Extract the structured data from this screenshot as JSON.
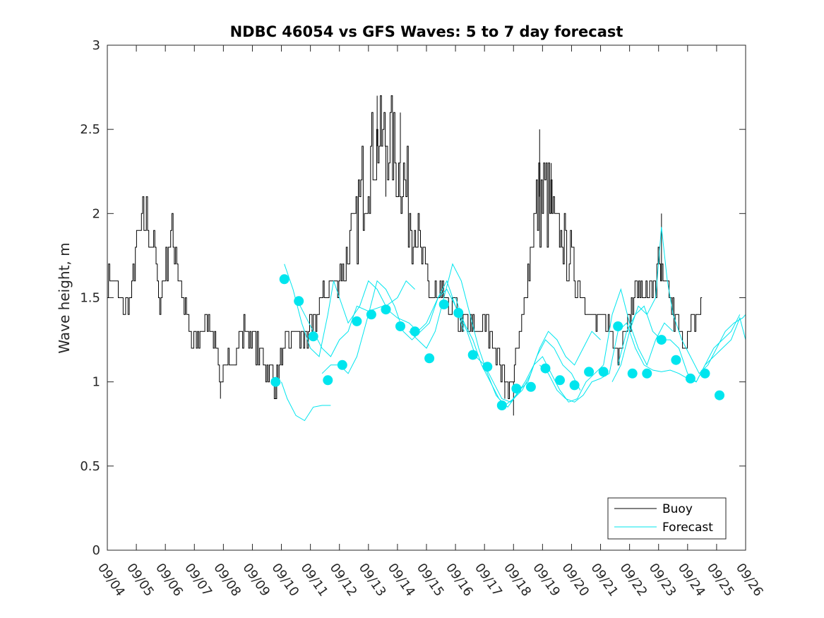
{
  "chart_data": {
    "type": "line",
    "title": "NDBC 46054 vs GFS Waves: 5 to 7 day forecast",
    "xlabel": "",
    "ylabel": "Wave height, m",
    "xlim_days": [
      0,
      22
    ],
    "ylim": [
      0,
      3
    ],
    "yticks": [
      0,
      0.5,
      1,
      1.5,
      2,
      2.5,
      3
    ],
    "ytick_labels": [
      "0",
      "0.5",
      "1",
      "1.5",
      "2",
      "2.5",
      "3"
    ],
    "xtick_labels": [
      "09/04",
      "09/05",
      "09/06",
      "09/07",
      "09/08",
      "09/09",
      "09/10",
      "09/11",
      "09/12",
      "09/13",
      "09/14",
      "09/15",
      "09/16",
      "09/17",
      "09/18",
      "09/19",
      "09/20",
      "09/21",
      "09/22",
      "09/23",
      "09/24",
      "09/25",
      "09/26"
    ],
    "legend": {
      "position": "bottom-right",
      "entries": [
        {
          "label": "Buoy",
          "color": "#000000"
        },
        {
          "label": "Forecast",
          "color": "#00e5ee"
        }
      ]
    },
    "colors": {
      "buoy": "#000000",
      "forecast": "#00e5ee",
      "axis": "#262626"
    },
    "buoy_anchors": [
      [
        0.0,
        1.6
      ],
      [
        0.3,
        1.6
      ],
      [
        0.5,
        1.45
      ],
      [
        0.8,
        1.5
      ],
      [
        1.0,
        1.8
      ],
      [
        1.3,
        2.0
      ],
      [
        1.6,
        1.8
      ],
      [
        1.8,
        1.45
      ],
      [
        2.1,
        1.8
      ],
      [
        2.3,
        1.85
      ],
      [
        2.5,
        1.6
      ],
      [
        2.7,
        1.4
      ],
      [
        2.9,
        1.2
      ],
      [
        3.2,
        1.3
      ],
      [
        3.5,
        1.4
      ],
      [
        3.8,
        1.15
      ],
      [
        3.9,
        1.0
      ],
      [
        4.3,
        1.15
      ],
      [
        4.7,
        1.3
      ],
      [
        5.0,
        1.25
      ],
      [
        5.3,
        1.15
      ],
      [
        5.5,
        1.05
      ],
      [
        5.8,
        1.0
      ],
      [
        6.1,
        1.2
      ],
      [
        6.4,
        1.3
      ],
      [
        6.7,
        1.25
      ],
      [
        7.0,
        1.3
      ],
      [
        7.3,
        1.45
      ],
      [
        7.6,
        1.55
      ],
      [
        7.9,
        1.6
      ],
      [
        8.2,
        1.7
      ],
      [
        8.6,
        2.0
      ],
      [
        9.0,
        2.3
      ],
      [
        9.4,
        2.45
      ],
      [
        9.8,
        2.4
      ],
      [
        10.2,
        2.2
      ],
      [
        10.5,
        2.0
      ],
      [
        10.8,
        1.75
      ],
      [
        11.1,
        1.55
      ],
      [
        11.5,
        1.5
      ],
      [
        11.9,
        1.45
      ],
      [
        12.2,
        1.35
      ],
      [
        12.6,
        1.3
      ],
      [
        13.0,
        1.35
      ],
      [
        13.3,
        1.25
      ],
      [
        13.6,
        1.05
      ],
      [
        13.9,
        0.95
      ],
      [
        14.3,
        1.35
      ],
      [
        14.5,
        1.7
      ],
      [
        14.8,
        2.05
      ],
      [
        15.1,
        2.1
      ],
      [
        15.4,
        1.95
      ],
      [
        15.7,
        1.85
      ],
      [
        16.1,
        1.65
      ],
      [
        16.4,
        1.5
      ],
      [
        16.8,
        1.35
      ],
      [
        17.2,
        1.35
      ],
      [
        17.6,
        1.2
      ],
      [
        17.9,
        1.35
      ],
      [
        18.3,
        1.55
      ],
      [
        18.7,
        1.5
      ],
      [
        19.0,
        1.65
      ],
      [
        19.3,
        1.55
      ],
      [
        19.6,
        1.35
      ],
      [
        19.9,
        1.2
      ],
      [
        20.2,
        1.35
      ],
      [
        20.5,
        1.45
      ]
    ],
    "buoy_spikes": [
      [
        9.3,
        2.7
      ],
      [
        9.6,
        2.1
      ],
      [
        10.1,
        2.6
      ],
      [
        14.9,
        2.5
      ],
      [
        15.3,
        2.3
      ],
      [
        19.1,
        2.0
      ],
      [
        14.0,
        0.8
      ],
      [
        3.9,
        0.9
      ],
      [
        5.8,
        0.9
      ],
      [
        13.7,
        0.9
      ]
    ],
    "forecast_markers": [
      [
        5.8,
        1.0
      ],
      [
        6.1,
        1.61
      ],
      [
        6.6,
        1.48
      ],
      [
        7.1,
        1.27
      ],
      [
        7.6,
        1.01
      ],
      [
        8.1,
        1.1
      ],
      [
        8.6,
        1.36
      ],
      [
        9.1,
        1.4
      ],
      [
        9.6,
        1.43
      ],
      [
        10.1,
        1.33
      ],
      [
        10.6,
        1.3
      ],
      [
        11.1,
        1.14
      ],
      [
        11.6,
        1.46
      ],
      [
        12.1,
        1.41
      ],
      [
        12.6,
        1.16
      ],
      [
        13.1,
        1.09
      ],
      [
        13.6,
        0.86
      ],
      [
        14.1,
        0.96
      ],
      [
        14.6,
        0.97
      ],
      [
        15.1,
        1.08
      ],
      [
        15.6,
        1.01
      ],
      [
        16.1,
        0.98
      ],
      [
        16.6,
        1.06
      ],
      [
        17.1,
        1.06
      ],
      [
        17.6,
        1.33
      ],
      [
        18.1,
        1.05
      ],
      [
        18.6,
        1.05
      ],
      [
        19.1,
        1.25
      ],
      [
        19.6,
        1.13
      ],
      [
        20.1,
        1.02
      ],
      [
        20.6,
        1.05
      ],
      [
        21.1,
        0.92
      ]
    ],
    "forecast_segments": [
      [
        [
          6.1,
          1.7
        ],
        [
          6.4,
          1.55
        ],
        [
          6.7,
          1.35
        ],
        [
          7.0,
          1.2
        ],
        [
          7.3,
          1.15
        ],
        [
          7.6,
          1.4
        ],
        [
          7.8,
          1.6
        ],
        [
          8.0,
          1.5
        ],
        [
          8.3,
          1.35
        ],
        [
          8.7,
          1.45
        ],
        [
          9.0,
          1.6
        ],
        [
          9.3,
          1.55
        ],
        [
          9.6,
          1.45
        ],
        [
          10.0,
          1.5
        ],
        [
          10.3,
          1.6
        ],
        [
          10.6,
          1.55
        ]
      ],
      [
        [
          6.0,
          1.0
        ],
        [
          6.2,
          0.9
        ],
        [
          6.5,
          0.8
        ],
        [
          6.8,
          0.77
        ],
        [
          7.1,
          0.85
        ],
        [
          7.4,
          0.86
        ],
        [
          7.7,
          0.86
        ]
      ],
      [
        [
          6.5,
          1.5
        ],
        [
          6.8,
          1.4
        ],
        [
          7.1,
          1.3
        ],
        [
          7.4,
          1.2
        ],
        [
          7.7,
          1.15
        ],
        [
          8.0,
          1.25
        ],
        [
          8.3,
          1.3
        ],
        [
          8.6,
          1.45
        ],
        [
          9.0,
          1.42
        ],
        [
          9.5,
          1.45
        ],
        [
          10.0,
          1.38
        ],
        [
          10.4,
          1.35
        ],
        [
          10.7,
          1.3
        ],
        [
          11.0,
          1.35
        ],
        [
          11.4,
          1.5
        ],
        [
          11.7,
          1.6
        ],
        [
          12.0,
          1.45
        ],
        [
          12.3,
          1.3
        ]
      ],
      [
        [
          7.4,
          1.05
        ],
        [
          7.7,
          1.1
        ],
        [
          8.0,
          1.1
        ],
        [
          8.3,
          1.05
        ],
        [
          8.6,
          1.15
        ],
        [
          9.0,
          1.4
        ],
        [
          9.3,
          1.6
        ],
        [
          9.6,
          1.55
        ],
        [
          9.9,
          1.45
        ],
        [
          10.2,
          1.3
        ],
        [
          10.5,
          1.25
        ],
        [
          10.8,
          1.3
        ],
        [
          11.1,
          1.35
        ],
        [
          11.4,
          1.5
        ],
        [
          11.7,
          1.55
        ],
        [
          12.0,
          1.45
        ],
        [
          12.4,
          1.3
        ],
        [
          12.7,
          1.15
        ],
        [
          13.0,
          1.1
        ],
        [
          13.3,
          1.0
        ],
        [
          13.6,
          0.9
        ],
        [
          13.9,
          0.88
        ],
        [
          14.2,
          0.95
        ],
        [
          14.5,
          1.0
        ],
        [
          14.8,
          1.15
        ],
        [
          15.1,
          1.25
        ],
        [
          15.4,
          1.2
        ],
        [
          15.7,
          1.1
        ],
        [
          16.0,
          1.05
        ],
        [
          16.3,
          0.95
        ]
      ],
      [
        [
          10.4,
          1.3
        ],
        [
          10.7,
          1.25
        ],
        [
          11.0,
          1.2
        ],
        [
          11.3,
          1.3
        ],
        [
          11.6,
          1.5
        ],
        [
          11.9,
          1.7
        ],
        [
          12.2,
          1.6
        ],
        [
          12.5,
          1.4
        ],
        [
          12.8,
          1.2
        ],
        [
          13.1,
          1.05
        ],
        [
          13.4,
          0.92
        ],
        [
          13.7,
          0.86
        ],
        [
          14.0,
          0.9
        ],
        [
          14.3,
          0.95
        ],
        [
          14.6,
          1.05
        ],
        [
          14.9,
          1.2
        ],
        [
          15.2,
          1.3
        ],
        [
          15.5,
          1.25
        ],
        [
          15.8,
          1.15
        ],
        [
          16.1,
          1.1
        ],
        [
          16.4,
          1.2
        ],
        [
          16.7,
          1.3
        ],
        [
          17.0,
          1.25
        ]
      ],
      [
        [
          12.0,
          1.5
        ],
        [
          12.3,
          1.35
        ],
        [
          12.6,
          1.25
        ],
        [
          12.9,
          1.1
        ],
        [
          13.2,
          1.0
        ],
        [
          13.5,
          0.9
        ],
        [
          13.8,
          0.85
        ],
        [
          14.1,
          0.92
        ],
        [
          14.4,
          1.0
        ],
        [
          14.7,
          1.1
        ],
        [
          15.0,
          1.15
        ],
        [
          15.3,
          1.05
        ],
        [
          15.6,
          0.95
        ],
        [
          15.9,
          0.88
        ],
        [
          16.2,
          0.9
        ],
        [
          16.5,
          1.0
        ],
        [
          16.8,
          1.05
        ],
        [
          17.1,
          1.1
        ],
        [
          17.4,
          1.4
        ],
        [
          17.7,
          1.55
        ],
        [
          18.0,
          1.35
        ],
        [
          18.3,
          1.2
        ],
        [
          18.6,
          1.1
        ],
        [
          18.9,
          1.25
        ],
        [
          19.2,
          1.35
        ],
        [
          19.5,
          1.3
        ]
      ],
      [
        [
          14.9,
          1.1
        ],
        [
          15.2,
          1.05
        ],
        [
          15.5,
          0.95
        ],
        [
          15.8,
          0.9
        ],
        [
          16.1,
          0.88
        ],
        [
          16.4,
          0.92
        ],
        [
          16.7,
          1.0
        ],
        [
          17.0,
          1.02
        ],
        [
          17.3,
          1.05
        ],
        [
          17.6,
          1.3
        ],
        [
          17.9,
          1.35
        ],
        [
          18.2,
          1.2
        ],
        [
          18.5,
          1.1
        ],
        [
          18.8,
          1.07
        ],
        [
          19.1,
          1.06
        ],
        [
          19.4,
          1.07
        ],
        [
          19.7,
          1.05
        ],
        [
          20.0,
          1.02
        ],
        [
          20.3,
          1.0
        ],
        [
          20.6,
          1.1
        ],
        [
          20.9,
          1.15
        ],
        [
          21.2,
          1.2
        ],
        [
          21.5,
          1.25
        ],
        [
          21.8,
          1.38
        ],
        [
          22.0,
          1.25
        ]
      ],
      [
        [
          17.4,
          1.0
        ],
        [
          17.7,
          1.1
        ],
        [
          18.0,
          1.3
        ],
        [
          18.3,
          1.45
        ],
        [
          18.6,
          1.4
        ],
        [
          18.9,
          1.5
        ],
        [
          19.1,
          1.92
        ],
        [
          19.3,
          1.6
        ],
        [
          19.5,
          1.4
        ],
        [
          19.8,
          1.25
        ],
        [
          20.1,
          1.15
        ],
        [
          20.4,
          1.05
        ],
        [
          20.7,
          1.1
        ],
        [
          21.0,
          1.2
        ],
        [
          21.3,
          1.3
        ],
        [
          21.6,
          1.35
        ],
        [
          21.9,
          1.38
        ],
        [
          22.0,
          1.4
        ]
      ],
      [
        [
          17.6,
          1.1
        ],
        [
          17.9,
          1.3
        ],
        [
          18.2,
          1.4
        ],
        [
          18.5,
          1.45
        ],
        [
          18.8,
          1.3
        ],
        [
          19.1,
          1.25
        ],
        [
          19.4,
          1.25
        ],
        [
          19.7,
          1.2
        ],
        [
          20.0,
          1.05
        ],
        [
          20.3,
          1.0
        ],
        [
          20.6,
          1.1
        ],
        [
          20.9,
          1.2
        ],
        [
          21.2,
          1.25
        ],
        [
          21.5,
          1.3
        ],
        [
          21.8,
          1.4
        ]
      ]
    ]
  }
}
